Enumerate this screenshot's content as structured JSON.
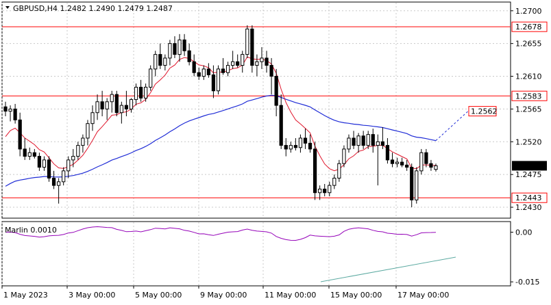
{
  "chart_title": "GBPUSD,H4  1.2482 1.2490 1.2479 1.2487",
  "indicator_label": "Marlin 0.0010",
  "price_ticks": [
    "1.2700",
    "1.2655",
    "1.2610",
    "1.2565",
    "1.2520",
    "1.2475",
    "1.2430"
  ],
  "osc_ticks": [
    "0.00",
    "-0.015"
  ],
  "time_labels": [
    "1 May 2023",
    "3 May 00:00",
    "5 May 00:00",
    "9 May 00:00",
    "11 May 00:00",
    "15 May 00:00",
    "17 May 00:00"
  ],
  "levels": [
    {
      "label": "1.2678",
      "price": 1.2678,
      "color": "#ff0000"
    },
    {
      "label": "1.2583",
      "price": 1.2583,
      "color": "#ff0000"
    },
    {
      "label": "1.2443",
      "price": 1.2443,
      "color": "#ff0000"
    }
  ],
  "target_label": "1.2562",
  "current_price_label": "1.2487",
  "colors": {
    "ma_fast": "#e0152b",
    "ma_slow": "#1e2bd6",
    "oscillator": "#9400b8",
    "trendline": "#5aa9a0",
    "level": "#ff0000"
  },
  "chart_data": {
    "type": "candlestick",
    "symbol": "GBPUSD",
    "timeframe": "H4",
    "ylim": [
      1.2415,
      1.2712
    ],
    "candles": [
      [
        1.2568,
        1.2575,
        1.2555,
        1.2562
      ],
      [
        1.2562,
        1.257,
        1.2548,
        1.2565
      ],
      [
        1.2565,
        1.2572,
        1.2545,
        1.255
      ],
      [
        1.255,
        1.256,
        1.25,
        1.251
      ],
      [
        1.251,
        1.2525,
        1.2495,
        1.25
      ],
      [
        1.25,
        1.2512,
        1.2495,
        1.2505
      ],
      [
        1.2505,
        1.251,
        1.2497,
        1.25
      ],
      [
        1.25,
        1.2505,
        1.248,
        1.2485
      ],
      [
        1.2485,
        1.25,
        1.248,
        1.2495
      ],
      [
        1.2495,
        1.25,
        1.2465,
        1.247
      ],
      [
        1.247,
        1.248,
        1.2455,
        1.246
      ],
      [
        1.246,
        1.247,
        1.2435,
        1.2465
      ],
      [
        1.2465,
        1.2485,
        1.246,
        1.248
      ],
      [
        1.248,
        1.25,
        1.247,
        1.2495
      ],
      [
        1.2495,
        1.251,
        1.2485,
        1.25
      ],
      [
        1.25,
        1.252,
        1.2495,
        1.2515
      ],
      [
        1.2515,
        1.253,
        1.2505,
        1.2525
      ],
      [
        1.2525,
        1.255,
        1.2515,
        1.2545
      ],
      [
        1.2545,
        1.257,
        1.2535,
        1.256
      ],
      [
        1.256,
        1.2585,
        1.255,
        1.2575
      ],
      [
        1.2575,
        1.259,
        1.2555,
        1.2565
      ],
      [
        1.2565,
        1.258,
        1.255,
        1.2575
      ],
      [
        1.2575,
        1.259,
        1.256,
        1.2585
      ],
      [
        1.2585,
        1.259,
        1.2555,
        1.256
      ],
      [
        1.256,
        1.2575,
        1.2545,
        1.257
      ],
      [
        1.257,
        1.259,
        1.2555,
        1.2565
      ],
      [
        1.2565,
        1.258,
        1.256,
        1.2578
      ],
      [
        1.2578,
        1.26,
        1.257,
        1.2595
      ],
      [
        1.2595,
        1.2605,
        1.2575,
        1.258
      ],
      [
        1.258,
        1.26,
        1.2575,
        1.2595
      ],
      [
        1.2595,
        1.2625,
        1.259,
        1.262
      ],
      [
        1.262,
        1.2645,
        1.261,
        1.264
      ],
      [
        1.264,
        1.2655,
        1.262,
        1.2625
      ],
      [
        1.2625,
        1.264,
        1.2618,
        1.2635
      ],
      [
        1.2635,
        1.266,
        1.2625,
        1.2655
      ],
      [
        1.2655,
        1.2665,
        1.2635,
        1.264
      ],
      [
        1.264,
        1.2668,
        1.263,
        1.266
      ],
      [
        1.266,
        1.2668,
        1.2638,
        1.2645
      ],
      [
        1.2645,
        1.2655,
        1.2625,
        1.263
      ],
      [
        1.263,
        1.264,
        1.261,
        1.2615
      ],
      [
        1.2615,
        1.2622,
        1.2605,
        1.261
      ],
      [
        1.261,
        1.2625,
        1.2605,
        1.262
      ],
      [
        1.262,
        1.2628,
        1.2608,
        1.2612
      ],
      [
        1.2612,
        1.2625,
        1.258,
        1.259
      ],
      [
        1.259,
        1.2625,
        1.2585,
        1.262
      ],
      [
        1.262,
        1.2635,
        1.2612,
        1.2615
      ],
      [
        1.2615,
        1.263,
        1.261,
        1.2625
      ],
      [
        1.2625,
        1.2645,
        1.262,
        1.263
      ],
      [
        1.263,
        1.264,
        1.2622,
        1.2625
      ],
      [
        1.2625,
        1.2645,
        1.2615,
        1.264
      ],
      [
        1.264,
        1.268,
        1.2635,
        1.2675
      ],
      [
        1.2675,
        1.268,
        1.2615,
        1.2625
      ],
      [
        1.2625,
        1.264,
        1.261,
        1.263
      ],
      [
        1.263,
        1.265,
        1.262,
        1.2635
      ],
      [
        1.2635,
        1.2645,
        1.2615,
        1.2625
      ],
      [
        1.2625,
        1.2635,
        1.2585,
        1.261
      ],
      [
        1.261,
        1.262,
        1.2555,
        1.257
      ],
      [
        1.257,
        1.2585,
        1.251,
        1.2515
      ],
      [
        1.2515,
        1.2525,
        1.25,
        1.251
      ],
      [
        1.251,
        1.252,
        1.2505,
        1.2515
      ],
      [
        1.2515,
        1.2525,
        1.2508,
        1.2512
      ],
      [
        1.2512,
        1.253,
        1.2505,
        1.2525
      ],
      [
        1.2525,
        1.2538,
        1.251,
        1.2518
      ],
      [
        1.2518,
        1.253,
        1.2505,
        1.251
      ],
      [
        1.251,
        1.252,
        1.244,
        1.245
      ],
      [
        1.245,
        1.246,
        1.244,
        1.2455
      ],
      [
        1.2455,
        1.2462,
        1.2445,
        1.245
      ],
      [
        1.245,
        1.2465,
        1.2445,
        1.246
      ],
      [
        1.246,
        1.2475,
        1.2455,
        1.247
      ],
      [
        1.247,
        1.2495,
        1.2465,
        1.249
      ],
      [
        1.249,
        1.2515,
        1.2485,
        1.251
      ],
      [
        1.251,
        1.253,
        1.2505,
        1.2525
      ],
      [
        1.2525,
        1.2535,
        1.251,
        1.2515
      ],
      [
        1.2515,
        1.2532,
        1.2505,
        1.2528
      ],
      [
        1.2528,
        1.2535,
        1.251,
        1.2515
      ],
      [
        1.2515,
        1.2535,
        1.251,
        1.253
      ],
      [
        1.253,
        1.2538,
        1.2505,
        1.2515
      ],
      [
        1.2515,
        1.253,
        1.246,
        1.252
      ],
      [
        1.252,
        1.254,
        1.251,
        1.2515
      ],
      [
        1.2515,
        1.2525,
        1.249,
        1.2495
      ],
      [
        1.2495,
        1.2505,
        1.2485,
        1.249
      ],
      [
        1.249,
        1.2498,
        1.2485,
        1.2492
      ],
      [
        1.2492,
        1.2498,
        1.2485,
        1.2488
      ],
      [
        1.2488,
        1.2495,
        1.248,
        1.2485
      ],
      [
        1.2485,
        1.249,
        1.243,
        1.244
      ],
      [
        1.244,
        1.2485,
        1.2435,
        1.248
      ],
      [
        1.248,
        1.251,
        1.2475,
        1.2505
      ],
      [
        1.2505,
        1.251,
        1.2485,
        1.249
      ],
      [
        1.249,
        1.2495,
        1.248,
        1.2485
      ],
      [
        1.2482,
        1.249,
        1.2479,
        1.2487
      ]
    ],
    "horizontal_levels": [
      1.2678,
      1.2583,
      1.2443
    ],
    "oscillator": {
      "name": "Marlin",
      "value": 0.001,
      "ylim": [
        -0.016,
        0.003
      ]
    }
  }
}
